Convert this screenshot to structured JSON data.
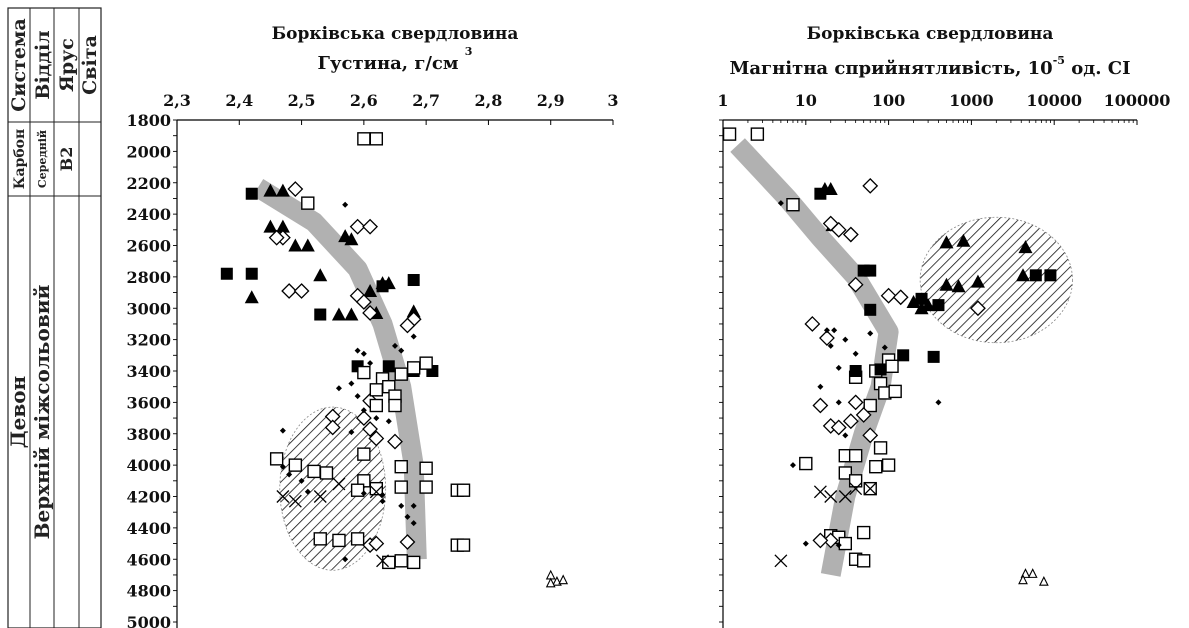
{
  "stratigraphy": {
    "headers": [
      "Система",
      "Відділ",
      "Ярус",
      "Світа"
    ],
    "upper": {
      "system": "Карбон",
      "division": "Середній",
      "stage": "В2"
    },
    "lower": {
      "system": "Девон",
      "division": "Верхній міжсольовий"
    }
  },
  "chart_data": [
    {
      "type": "scatter",
      "title": "Борківська свердловина",
      "xlabel": "Густина, г/см",
      "xlabel_sup": "3",
      "xlim": [
        2.3,
        3.0
      ],
      "x_ticks": [
        "2,3",
        "2,4",
        "2,5",
        "2,6",
        "2,7",
        "2,8",
        "2,9",
        "3"
      ],
      "x_tick_values": [
        2.3,
        2.4,
        2.5,
        2.6,
        2.7,
        2.8,
        2.9,
        3.0
      ],
      "ylim": [
        1800,
        5000
      ],
      "y_ticks": [
        "1800",
        "2000",
        "2200",
        "2400",
        "2600",
        "2800",
        "3000",
        "3200",
        "3400",
        "3600",
        "3800",
        "4000",
        "4200",
        "4400",
        "4600",
        "4800",
        "5000"
      ],
      "y_tick_values": [
        1800,
        2000,
        2200,
        2400,
        2600,
        2800,
        3000,
        3200,
        3400,
        3600,
        3800,
        4000,
        4200,
        4400,
        4600,
        4800,
        5000
      ],
      "trend": [
        [
          2.43,
          2230
        ],
        [
          2.52,
          2450
        ],
        [
          2.59,
          2750
        ],
        [
          2.63,
          3100
        ],
        [
          2.66,
          3500
        ],
        [
          2.68,
          4000
        ],
        [
          2.685,
          4600
        ]
      ],
      "hatched_region": {
        "cx": 2.55,
        "cy": 4150,
        "rx": 0.085,
        "ry": 520
      },
      "series": [
        {
          "marker": "filled-square",
          "points": [
            [
              2.42,
              2270
            ],
            [
              2.38,
              2780
            ],
            [
              2.42,
              2780
            ],
            [
              2.53,
              3040
            ],
            [
              2.63,
              2860
            ],
            [
              2.68,
              2820
            ],
            [
              2.64,
              3370
            ],
            [
              2.68,
              3400
            ],
            [
              2.71,
              3400
            ],
            [
              2.66,
              3420
            ],
            [
              2.59,
              3370
            ]
          ]
        },
        {
          "marker": "filled-triangle",
          "points": [
            [
              2.45,
              2250
            ],
            [
              2.47,
              2250
            ],
            [
              2.45,
              2480
            ],
            [
              2.47,
              2480
            ],
            [
              2.49,
              2600
            ],
            [
              2.51,
              2600
            ],
            [
              2.42,
              2930
            ],
            [
              2.53,
              2790
            ],
            [
              2.58,
              2560
            ],
            [
              2.57,
              2540
            ],
            [
              2.61,
              2890
            ],
            [
              2.63,
              2840
            ],
            [
              2.64,
              2840
            ],
            [
              2.56,
              3040
            ],
            [
              2.58,
              3040
            ],
            [
              2.62,
              3030
            ],
            [
              2.68,
              3020
            ]
          ]
        },
        {
          "marker": "open-diamond",
          "points": [
            [
              2.49,
              2240
            ],
            [
              2.47,
              2550
            ],
            [
              2.46,
              2550
            ],
            [
              2.48,
              2890
            ],
            [
              2.5,
              2890
            ],
            [
              2.59,
              2480
            ],
            [
              2.61,
              2480
            ],
            [
              2.59,
              2920
            ],
            [
              2.6,
              2960
            ],
            [
              2.61,
              3030
            ],
            [
              2.68,
              3070
            ],
            [
              2.67,
              3110
            ],
            [
              2.61,
              3590
            ],
            [
              2.6,
              3700
            ],
            [
              2.61,
              3770
            ],
            [
              2.62,
              3830
            ],
            [
              2.55,
              3690
            ],
            [
              2.55,
              3760
            ],
            [
              2.65,
              3850
            ],
            [
              2.67,
              4490
            ],
            [
              2.61,
              4510
            ],
            [
              2.62,
              4500
            ]
          ]
        },
        {
          "marker": "open-square",
          "points": [
            [
              2.51,
              2330
            ],
            [
              2.6,
              1920
            ],
            [
              2.62,
              1920
            ],
            [
              2.6,
              3410
            ],
            [
              2.63,
              3450
            ],
            [
              2.64,
              3500
            ],
            [
              2.65,
              3560
            ],
            [
              2.62,
              3520
            ],
            [
              2.66,
              3420
            ],
            [
              2.68,
              3380
            ],
            [
              2.7,
              3350
            ],
            [
              2.62,
              3620
            ],
            [
              2.65,
              3620
            ],
            [
              2.6,
              3930
            ],
            [
              2.66,
              4010
            ],
            [
              2.7,
              4020
            ],
            [
              2.46,
              3960
            ],
            [
              2.49,
              4000
            ],
            [
              2.52,
              4040
            ],
            [
              2.54,
              4050
            ],
            [
              2.6,
              4100
            ],
            [
              2.62,
              4150
            ],
            [
              2.66,
              4140
            ],
            [
              2.7,
              4140
            ],
            [
              2.59,
              4160
            ],
            [
              2.53,
              4470
            ],
            [
              2.56,
              4480
            ],
            [
              2.59,
              4470
            ],
            [
              2.64,
              4620
            ],
            [
              2.68,
              4620
            ],
            [
              2.66,
              4610
            ],
            [
              2.75,
              4160
            ],
            [
              2.76,
              4160
            ],
            [
              2.75,
              4510
            ],
            [
              2.76,
              4510
            ]
          ]
        },
        {
          "marker": "small-dot",
          "points": [
            [
              2.57,
              2340
            ],
            [
              2.59,
              3270
            ],
            [
              2.6,
              3290
            ],
            [
              2.61,
              3350
            ],
            [
              2.65,
              3240
            ],
            [
              2.68,
              3180
            ],
            [
              2.66,
              3270
            ],
            [
              2.58,
              3480
            ],
            [
              2.56,
              3510
            ],
            [
              2.59,
              3560
            ],
            [
              2.6,
              3650
            ],
            [
              2.62,
              3700
            ],
            [
              2.64,
              3720
            ],
            [
              2.58,
              3790
            ],
            [
              2.47,
              3780
            ],
            [
              2.47,
              4010
            ],
            [
              2.48,
              4060
            ],
            [
              2.5,
              4100
            ],
            [
              2.51,
              4170
            ],
            [
              2.6,
              4180
            ],
            [
              2.63,
              4230
            ],
            [
              2.66,
              4260
            ],
            [
              2.68,
              4260
            ],
            [
              2.67,
              4330
            ],
            [
              2.68,
              4370
            ],
            [
              2.63,
              4190
            ],
            [
              2.57,
              4600
            ]
          ]
        },
        {
          "marker": "cross",
          "points": [
            [
              2.47,
              4200
            ],
            [
              2.49,
              4230
            ],
            [
              2.53,
              4200
            ],
            [
              2.56,
              4120
            ],
            [
              2.62,
              4170
            ],
            [
              2.63,
              4610
            ]
          ]
        },
        {
          "marker": "open-triangle",
          "points": [
            [
              2.9,
              4700
            ],
            [
              2.91,
              4740
            ],
            [
              2.92,
              4730
            ],
            [
              2.9,
              4750
            ]
          ]
        }
      ]
    },
    {
      "type": "scatter",
      "title": "Борківська свердловина",
      "xlabel": "Магнітна сприйнятливість,",
      "xlabel_unit_base": "10",
      "xlabel_unit_sup": "-5",
      "xlabel_unit_rest": "од. СІ",
      "x_scale": "log",
      "xlim": [
        1,
        100000
      ],
      "x_ticks": [
        "1",
        "10",
        "100",
        "1000",
        "10000",
        "100000"
      ],
      "x_tick_values": [
        1,
        10,
        100,
        1000,
        10000,
        100000
      ],
      "ylim": [
        1800,
        5000
      ],
      "trend": [
        [
          1.5,
          1960
        ],
        [
          6,
          2300
        ],
        [
          15,
          2550
        ],
        [
          40,
          2800
        ],
        [
          100,
          3150
        ],
        [
          80,
          3500
        ],
        [
          50,
          3800
        ],
        [
          30,
          4200
        ],
        [
          20,
          4700
        ]
      ],
      "hatched_region": {
        "cx": 2000,
        "cy": 2820,
        "rx_log": 0.92,
        "ry": 400
      },
      "series": [
        {
          "marker": "open-square",
          "points": [
            [
              1.2,
              1890
            ],
            [
              2.6,
              1890
            ],
            [
              7,
              2340
            ],
            [
              40,
              3440
            ],
            [
              70,
              3400
            ],
            [
              80,
              3480
            ],
            [
              100,
              3330
            ],
            [
              110,
              3370
            ],
            [
              90,
              3540
            ],
            [
              120,
              3530
            ],
            [
              60,
              3620
            ],
            [
              30,
              3940
            ],
            [
              40,
              3940
            ],
            [
              80,
              3890
            ],
            [
              100,
              4000
            ],
            [
              70,
              4010
            ],
            [
              10,
              3990
            ],
            [
              30,
              4050
            ],
            [
              40,
              4100
            ],
            [
              60,
              4150
            ],
            [
              20,
              4450
            ],
            [
              25,
              4460
            ],
            [
              30,
              4500
            ],
            [
              50,
              4430
            ],
            [
              40,
              4600
            ],
            [
              50,
              4610
            ]
          ]
        },
        {
          "marker": "filled-square",
          "points": [
            [
              15,
              2270
            ],
            [
              50,
              2760
            ],
            [
              60,
              2760
            ],
            [
              60,
              3010
            ],
            [
              150,
              3300
            ],
            [
              350,
              3310
            ],
            [
              80,
              3390
            ],
            [
              40,
              3400
            ],
            [
              6000,
              2790
            ],
            [
              9000,
              2790
            ],
            [
              250,
              2940
            ],
            [
              400,
              2980
            ]
          ]
        },
        {
          "marker": "filled-triangle",
          "points": [
            [
              17,
              2240
            ],
            [
              20,
              2240
            ],
            [
              21,
              2470
            ],
            [
              500,
              2580
            ],
            [
              800,
              2570
            ],
            [
              4500,
              2610
            ],
            [
              300,
              2980
            ],
            [
              500,
              2850
            ],
            [
              1200,
              2830
            ],
            [
              4200,
              2790
            ],
            [
              700,
              2860
            ],
            [
              200,
              2960
            ],
            [
              250,
              3000
            ]
          ]
        },
        {
          "marker": "open-diamond",
          "points": [
            [
              60,
              2220
            ],
            [
              20,
              2460
            ],
            [
              25,
              2500
            ],
            [
              35,
              2530
            ],
            [
              40,
              2850
            ],
            [
              100,
              2920
            ],
            [
              140,
              2930
            ],
            [
              1200,
              3000
            ],
            [
              12,
              3100
            ],
            [
              18,
              3190
            ],
            [
              20,
              3750
            ],
            [
              25,
              3760
            ],
            [
              35,
              3720
            ],
            [
              40,
              3600
            ],
            [
              50,
              3680
            ],
            [
              15,
              3620
            ],
            [
              60,
              3810
            ],
            [
              20,
              4480
            ],
            [
              15,
              4480
            ]
          ]
        },
        {
          "marker": "small-dot",
          "points": [
            [
              5,
              2330
            ],
            [
              18,
              3140
            ],
            [
              22,
              3140
            ],
            [
              30,
              3200
            ],
            [
              20,
              3240
            ],
            [
              25,
              3380
            ],
            [
              40,
              3290
            ],
            [
              60,
              3160
            ],
            [
              90,
              3250
            ],
            [
              400,
              3600
            ],
            [
              15,
              3500
            ],
            [
              25,
              3600
            ],
            [
              30,
              3810
            ],
            [
              7,
              4000
            ],
            [
              10,
              4500
            ],
            [
              25,
              4510
            ]
          ]
        },
        {
          "marker": "cross",
          "points": [
            [
              15,
              4170
            ],
            [
              20,
              4200
            ],
            [
              30,
              4200
            ],
            [
              40,
              4150
            ],
            [
              60,
              4150
            ],
            [
              5,
              4610
            ]
          ]
        },
        {
          "marker": "open-triangle",
          "points": [
            [
              4500,
              4690
            ],
            [
              5500,
              4690
            ],
            [
              4200,
              4730
            ],
            [
              7500,
              4740
            ]
          ]
        }
      ]
    }
  ]
}
